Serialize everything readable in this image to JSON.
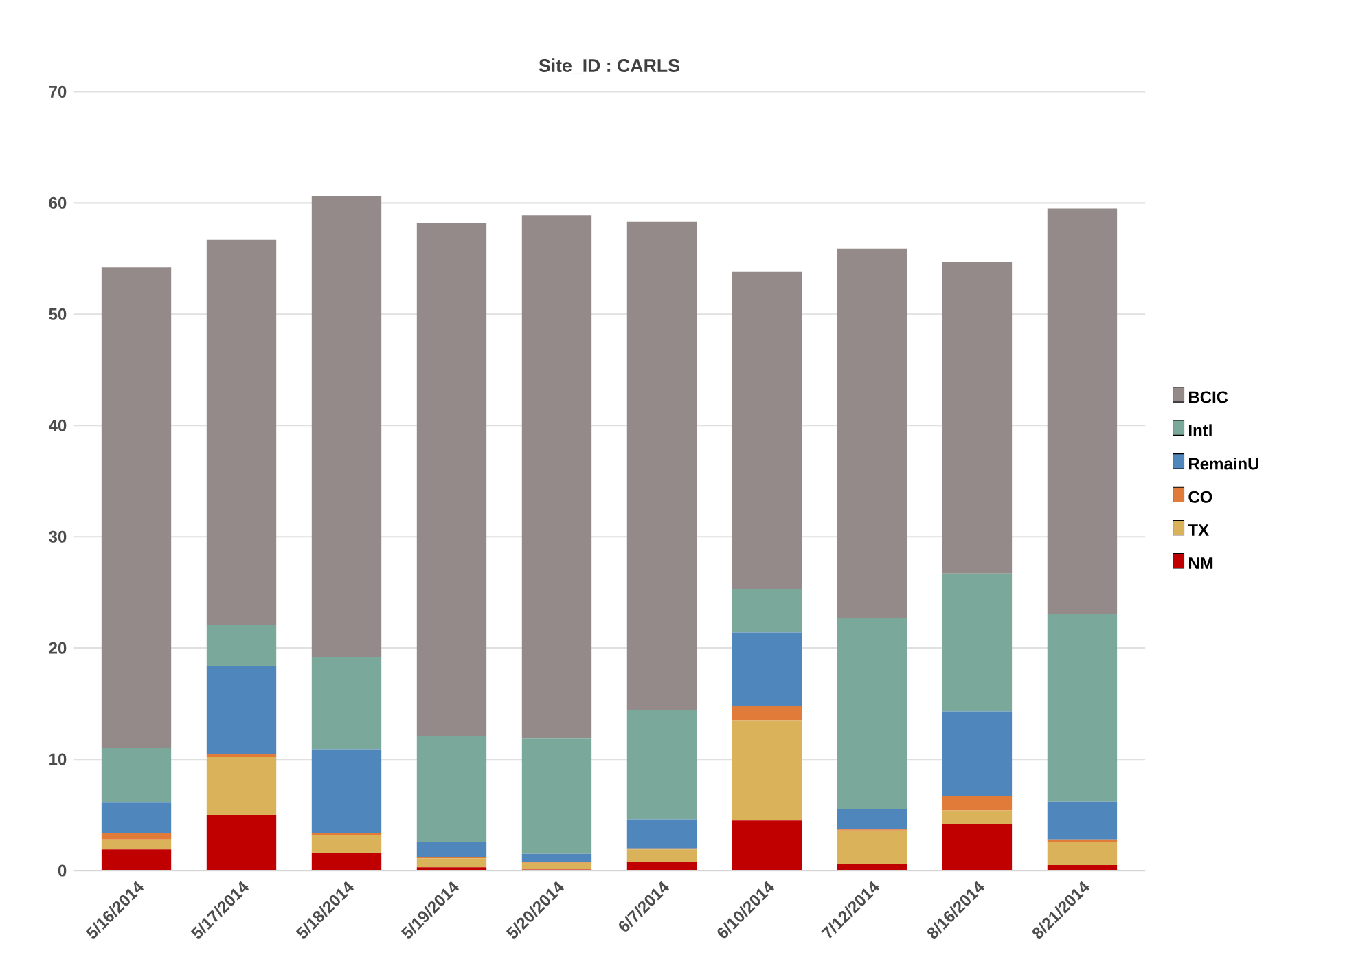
{
  "chart_data": {
    "type": "bar",
    "title": "Site_ID : CARLS",
    "stacked": true,
    "grid": "y",
    "legend": "right",
    "categories": [
      "5/16/2014",
      "5/17/2014",
      "5/18/2014",
      "5/19/2014",
      "5/20/2014",
      "6/7/2014",
      "6/10/2014",
      "7/12/2014",
      "8/16/2014",
      "8/21/2014"
    ],
    "ylim": [
      0,
      70
    ],
    "yticks": [
      0,
      10,
      20,
      30,
      40,
      50,
      60,
      70
    ],
    "series": [
      {
        "name": "NM",
        "color": "#c00000",
        "values": [
          1.9,
          5.0,
          1.6,
          0.3,
          0.1,
          0.8,
          4.5,
          0.6,
          4.2,
          0.5
        ]
      },
      {
        "name": "TX",
        "color": "#d9b25a",
        "values": [
          0.9,
          5.2,
          1.6,
          0.8,
          0.6,
          1.1,
          9.0,
          3.0,
          1.2,
          2.1
        ]
      },
      {
        "name": "CO",
        "color": "#e07b39",
        "values": [
          0.6,
          0.3,
          0.2,
          0.1,
          0.1,
          0.1,
          1.3,
          0.1,
          1.3,
          0.2
        ]
      },
      {
        "name": "RemainU",
        "color": "#4f86bb",
        "values": [
          2.7,
          7.9,
          7.5,
          1.4,
          0.7,
          2.6,
          6.6,
          1.8,
          7.6,
          3.4
        ]
      },
      {
        "name": "Intl",
        "color": "#7aa89a",
        "values": [
          4.9,
          3.7,
          8.3,
          9.5,
          10.4,
          9.8,
          3.9,
          17.2,
          12.4,
          16.9
        ]
      },
      {
        "name": "BCIC",
        "color": "#948a89",
        "values": [
          43.2,
          34.6,
          41.4,
          46.1,
          47.0,
          43.9,
          28.5,
          33.2,
          28.0,
          36.4
        ]
      }
    ]
  }
}
